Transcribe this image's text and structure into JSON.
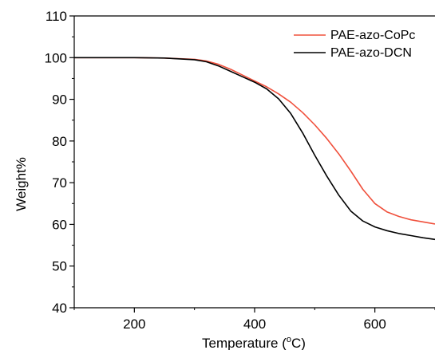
{
  "chart_data": {
    "type": "line",
    "xlabel": "Temperature (°C)",
    "xlabel_main": "Temperature (",
    "xlabel_sup": "o",
    "xlabel_unit": "C)",
    "ylabel": "Weight%",
    "xlim": [
      100,
      700
    ],
    "ylim": [
      40,
      110
    ],
    "x_ticks": [
      200,
      400,
      600
    ],
    "y_ticks": [
      40,
      50,
      60,
      70,
      80,
      90,
      100,
      110
    ],
    "grid": false,
    "legend_position": "top-right",
    "series": [
      {
        "name": "PAE-azo-CoPc",
        "color": "#f0503c",
        "x": [
          100,
          150,
          200,
          250,
          300,
          320,
          340,
          360,
          380,
          400,
          420,
          440,
          460,
          480,
          500,
          520,
          540,
          560,
          580,
          600,
          620,
          640,
          660,
          680,
          700
        ],
        "y": [
          100.0,
          100.0,
          100.0,
          99.9,
          99.6,
          99.2,
          98.4,
          97.2,
          95.8,
          94.4,
          93.0,
          91.3,
          89.3,
          86.8,
          83.9,
          80.6,
          76.9,
          72.8,
          68.4,
          65.0,
          63.0,
          61.9,
          61.1,
          60.6,
          60.1
        ]
      },
      {
        "name": "PAE-azo-DCN",
        "color": "#000000",
        "x": [
          100,
          150,
          200,
          250,
          300,
          320,
          340,
          360,
          380,
          400,
          420,
          440,
          460,
          480,
          500,
          520,
          540,
          560,
          580,
          600,
          620,
          640,
          660,
          680,
          700
        ],
        "y": [
          100.0,
          100.0,
          100.0,
          99.9,
          99.5,
          99.0,
          98.0,
          96.7,
          95.4,
          94.1,
          92.5,
          90.1,
          86.6,
          81.9,
          76.6,
          71.6,
          67.0,
          63.2,
          60.8,
          59.4,
          58.5,
          57.8,
          57.3,
          56.8,
          56.4
        ]
      }
    ]
  }
}
